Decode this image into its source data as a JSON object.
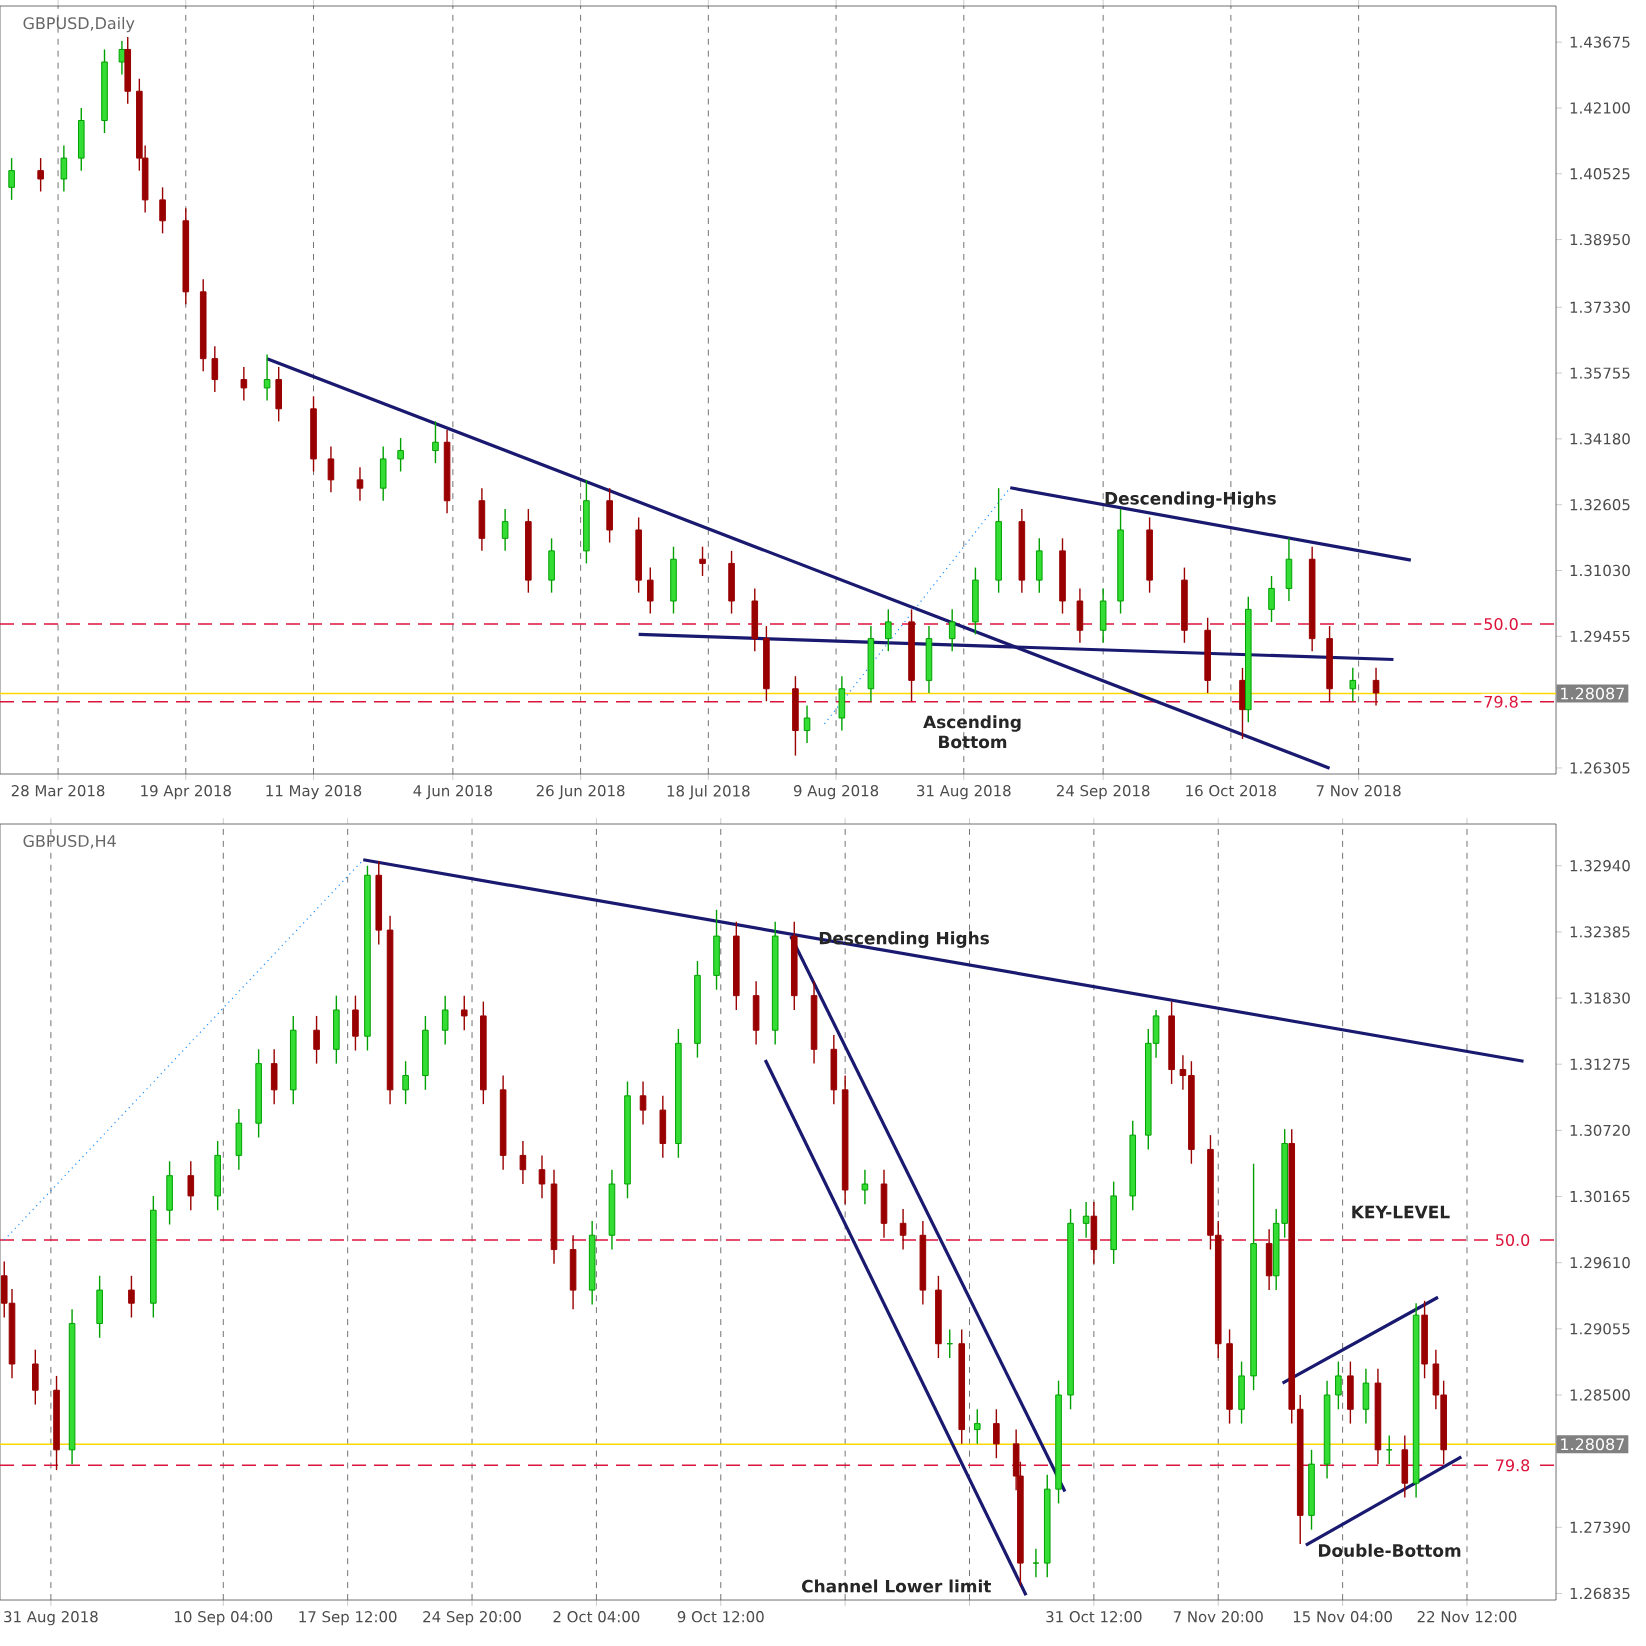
{
  "chart_data": [
    {
      "type": "candlestick",
      "title": "GBPUSD,Daily",
      "grid": "x",
      "x": [
        "2018-03-20",
        "2018-03-25",
        "2018-03-29",
        "2018-04-01",
        "2018-04-05",
        "2018-04-08",
        "2018-04-09",
        "2018-04-11",
        "2018-04-12",
        "2018-04-15",
        "2018-04-19",
        "2018-04-22",
        "2018-04-24",
        "2018-04-29",
        "2018-05-03",
        "2018-05-05",
        "2018-05-11",
        "2018-05-14",
        "2018-05-19",
        "2018-05-23",
        "2018-05-26",
        "2018-06-01",
        "2018-06-03",
        "2018-06-09",
        "2018-06-13",
        "2018-06-17",
        "2018-06-21",
        "2018-06-27",
        "2018-07-01",
        "2018-07-06",
        "2018-07-08",
        "2018-07-12",
        "2018-07-17",
        "2018-07-22",
        "2018-07-26",
        "2018-07-28",
        "2018-08-02",
        "2018-08-04",
        "2018-08-10",
        "2018-08-15",
        "2018-08-18",
        "2018-08-22",
        "2018-08-25",
        "2018-08-29",
        "2018-09-02",
        "2018-09-06",
        "2018-09-10",
        "2018-09-13",
        "2018-09-17",
        "2018-09-20",
        "2018-09-24",
        "2018-09-27",
        "2018-10-02",
        "2018-10-08",
        "2018-10-12",
        "2018-10-18",
        "2018-10-19",
        "2018-10-23",
        "2018-10-26",
        "2018-10-30",
        "2018-11-02",
        "2018-11-06",
        "2018-11-10"
      ],
      "ohlc": [
        [
          1.402,
          1.409,
          1.399,
          1.406
        ],
        [
          1.406,
          1.409,
          1.401,
          1.404
        ],
        [
          1.404,
          1.412,
          1.401,
          1.409
        ],
        [
          1.409,
          1.421,
          1.406,
          1.418
        ],
        [
          1.418,
          1.435,
          1.415,
          1.432
        ],
        [
          1.432,
          1.437,
          1.429,
          1.435
        ],
        [
          1.435,
          1.438,
          1.422,
          1.425
        ],
        [
          1.425,
          1.428,
          1.406,
          1.409
        ],
        [
          1.409,
          1.412,
          1.396,
          1.399
        ],
        [
          1.399,
          1.402,
          1.391,
          1.394
        ],
        [
          1.394,
          1.397,
          1.374,
          1.377
        ],
        [
          1.377,
          1.38,
          1.358,
          1.361
        ],
        [
          1.361,
          1.364,
          1.353,
          1.356
        ],
        [
          1.356,
          1.359,
          1.351,
          1.354
        ],
        [
          1.354,
          1.362,
          1.351,
          1.356
        ],
        [
          1.356,
          1.359,
          1.346,
          1.349
        ],
        [
          1.349,
          1.352,
          1.334,
          1.337
        ],
        [
          1.337,
          1.34,
          1.329,
          1.332
        ],
        [
          1.332,
          1.335,
          1.327,
          1.33
        ],
        [
          1.33,
          1.34,
          1.327,
          1.337
        ],
        [
          1.337,
          1.342,
          1.334,
          1.339
        ],
        [
          1.339,
          1.346,
          1.336,
          1.341
        ],
        [
          1.341,
          1.344,
          1.324,
          1.327
        ],
        [
          1.327,
          1.33,
          1.315,
          1.318
        ],
        [
          1.318,
          1.325,
          1.315,
          1.322
        ],
        [
          1.322,
          1.325,
          1.305,
          1.308
        ],
        [
          1.308,
          1.318,
          1.305,
          1.315
        ],
        [
          1.315,
          1.332,
          1.312,
          1.327
        ],
        [
          1.327,
          1.33,
          1.317,
          1.32
        ],
        [
          1.32,
          1.323,
          1.305,
          1.308
        ],
        [
          1.308,
          1.311,
          1.3,
          1.303
        ],
        [
          1.303,
          1.316,
          1.3,
          1.313
        ],
        [
          1.313,
          1.316,
          1.309,
          1.312
        ],
        [
          1.312,
          1.315,
          1.3,
          1.303
        ],
        [
          1.303,
          1.306,
          1.291,
          1.294
        ],
        [
          1.294,
          1.297,
          1.279,
          1.282
        ],
        [
          1.282,
          1.285,
          1.266,
          1.272
        ],
        [
          1.272,
          1.278,
          1.269,
          1.275
        ],
        [
          1.275,
          1.285,
          1.272,
          1.282
        ],
        [
          1.282,
          1.297,
          1.279,
          1.294
        ],
        [
          1.294,
          1.301,
          1.291,
          1.298
        ],
        [
          1.298,
          1.301,
          1.279,
          1.284
        ],
        [
          1.284,
          1.297,
          1.281,
          1.294
        ],
        [
          1.294,
          1.301,
          1.291,
          1.298
        ],
        [
          1.298,
          1.311,
          1.295,
          1.308
        ],
        [
          1.308,
          1.33,
          1.305,
          1.322
        ],
        [
          1.322,
          1.325,
          1.305,
          1.308
        ],
        [
          1.308,
          1.318,
          1.305,
          1.315
        ],
        [
          1.315,
          1.318,
          1.3,
          1.303
        ],
        [
          1.303,
          1.306,
          1.293,
          1.296
        ],
        [
          1.296,
          1.306,
          1.293,
          1.303
        ],
        [
          1.303,
          1.325,
          1.3,
          1.32
        ],
        [
          1.32,
          1.323,
          1.305,
          1.308
        ],
        [
          1.308,
          1.311,
          1.293,
          1.296
        ],
        [
          1.296,
          1.299,
          1.281,
          1.284
        ],
        [
          1.284,
          1.287,
          1.27,
          1.277
        ],
        [
          1.277,
          1.304,
          1.274,
          1.301
        ],
        [
          1.301,
          1.309,
          1.298,
          1.306
        ],
        [
          1.306,
          1.318,
          1.303,
          1.313
        ],
        [
          1.313,
          1.316,
          1.291,
          1.294
        ],
        [
          1.294,
          1.297,
          1.279,
          1.282
        ],
        [
          1.282,
          1.287,
          1.279,
          1.284
        ],
        [
          1.284,
          1.287,
          1.278,
          1.281
        ]
      ],
      "xlim": [
        "2018-03-18",
        "2018-12-11"
      ],
      "ylim": [
        1.2616,
        1.4454
      ],
      "xticks": [
        {
          "value": "2018-03-28",
          "label": "28 Mar 2018"
        },
        {
          "value": "2018-04-19",
          "label": "19 Apr 2018"
        },
        {
          "value": "2018-05-11",
          "label": "11 May 2018"
        },
        {
          "value": "2018-06-04",
          "label": "4 Jun 2018"
        },
        {
          "value": "2018-06-26",
          "label": "26 Jun 2018"
        },
        {
          "value": "2018-07-18",
          "label": "18 Jul 2018"
        },
        {
          "value": "2018-08-09",
          "label": "9 Aug 2018"
        },
        {
          "value": "2018-08-31",
          "label": "31 Aug 2018"
        },
        {
          "value": "2018-09-24",
          "label": "24 Sep 2018"
        },
        {
          "value": "2018-10-16",
          "label": "16 Oct 2018"
        },
        {
          "value": "2018-11-07",
          "label": "7 Nov 2018"
        }
      ],
      "yticks": [
        1.43675,
        {
          "value": 1.421,
          "label": "1.42100"
        },
        1.40525,
        {
          "value": 1.3895,
          "label": "1.38950"
        },
        {
          "value": 1.3733,
          "label": "1.37330"
        },
        1.35755,
        {
          "value": 1.3418,
          "label": "1.34180"
        },
        1.32605,
        {
          "value": 1.3103,
          "label": "1.31030"
        },
        1.29455,
        1.26305
      ],
      "series": [
        {
          "type": "line",
          "color": "#191970",
          "x": [
            "2018-05-03",
            "2018-11-02"
          ],
          "values": [
            1.361,
            1.263
          ]
        },
        {
          "type": "line",
          "color": "#191970",
          "x": [
            "2018-07-06",
            "2018-11-13"
          ],
          "values": [
            1.295,
            1.289
          ]
        },
        {
          "type": "line",
          "color": "#191970",
          "x": [
            "2018-09-08",
            "2018-11-16"
          ],
          "values": [
            1.3301,
            1.3128
          ]
        },
        {
          "type": "line",
          "color": "#1e90ff",
          "line_style": "dotted",
          "x": [
            "2018-08-07",
            "2018-09-08"
          ],
          "values": [
            1.2736,
            1.3301
          ]
        }
      ],
      "ref_lines": [
        {
          "axis": "y",
          "value": 1.2975,
          "color": "#dc143c",
          "line_style": "dashed"
        },
        {
          "axis": "y",
          "value": 1.2789,
          "color": "#dc143c",
          "line_style": "dashed"
        },
        {
          "axis": "y",
          "value": 1.28087,
          "label": "1.28087",
          "color": "#ffd700",
          "line_style": "solid"
        }
      ],
      "annotations": [
        "Descending-Highs",
        "Ascending Bottom",
        {
          "text": "50.0",
          "x": "2018-12-05",
          "y": 1.2975
        },
        {
          "text": "79.8",
          "x": "2018-12-05",
          "y": 1.2789
        }
      ]
    },
    {
      "type": "candlestick",
      "title": "GBPUSD,H4",
      "grid": "x",
      "x": [
        "2018-08-28T06:00",
        "2018-08-28T17:00",
        "2018-08-30T02:00",
        "2018-08-31T08:00",
        "2018-09-01T06:00",
        "2018-09-02T21:00",
        "2018-09-04T18:00",
        "2018-09-06T01:00",
        "2018-09-07T00:00",
        "2018-09-08T06:00",
        "2018-09-09T20:00",
        "2018-09-11T02:00",
        "2018-09-12T06:00",
        "2018-09-13T04:00",
        "2018-09-14T07:00",
        "2018-09-15T16:00",
        "2018-09-16T20:00",
        "2018-09-17T23:00",
        "2018-09-18T16:00",
        "2018-09-19T08:00",
        "2018-09-20T00:00",
        "2018-09-20T22:00",
        "2018-09-22T02:00",
        "2018-09-23T06:00",
        "2018-09-24T09:00",
        "2018-09-25T12:00",
        "2018-09-26T16:00",
        "2018-09-27T20:00",
        "2018-09-28T23:00",
        "2018-09-29T16:00",
        "2018-09-30T19:00",
        "2018-10-01T22:00",
        "2018-10-03T02:00",
        "2018-10-04T00:00",
        "2018-10-04T22:00",
        "2018-10-06T02:00",
        "2018-10-07T00:00",
        "2018-10-08T03:00",
        "2018-10-09T06:00",
        "2018-10-10T10:00",
        "2018-10-11T14:00",
        "2018-10-12T17:00",
        "2018-10-13T20:00",
        "2018-10-15T00:00",
        "2018-10-16T04:00",
        "2018-10-16T20:00",
        "2018-10-18T00:00",
        "2018-10-19T03:00",
        "2018-10-20T06:00",
        "2018-10-21T10:00",
        "2018-10-22T08:00",
        "2018-10-23T00:00",
        "2018-10-23T17:00",
        "2018-10-24T15:00",
        "2018-10-25T18:00",
        "2018-10-26T22:00",
        "2018-10-27T04:00",
        "2018-10-28T02:00",
        "2018-10-28T18:00",
        "2018-10-29T10:00",
        "2018-10-30T03:00",
        "2018-10-31T01:00",
        "2018-10-31T12:00",
        "2018-11-01T16:00",
        "2018-11-02T19:00",
        "2018-11-03T17:00",
        "2018-11-04T04:00",
        "2018-11-05T02:00",
        "2018-11-05T18:00",
        "2018-11-06T06:00",
        "2018-11-07T09:00",
        "2018-11-07T20:00",
        "2018-11-08T12:00",
        "2018-11-09T05:00",
        "2018-11-09T22:00",
        "2018-11-10T20:00",
        "2018-11-11T06:00",
        "2018-11-11T18:00",
        "2018-11-12T04:00",
        "2018-11-12T16:00",
        "2018-11-13T08:00",
        "2018-11-14T06:00",
        "2018-11-14T22:00",
        "2018-11-15T15:00",
        "2018-11-16T13:00",
        "2018-11-17T06:00",
        "2018-11-17T22:00",
        "2018-11-18T20:00",
        "2018-11-19T12:00",
        "2018-11-20T00:00",
        "2018-11-20T16:00",
        "2018-11-21T03:00"
      ],
      "ohlc": [
        [
          1.295,
          1.2962,
          1.2915,
          1.2927
        ],
        [
          1.2927,
          1.2939,
          1.2864,
          1.2876
        ],
        [
          1.2876,
          1.2888,
          1.2842,
          1.2854
        ],
        [
          1.2854,
          1.2866,
          1.2787,
          1.2804
        ],
        [
          1.2804,
          1.2922,
          1.2792,
          1.291
        ],
        [
          1.291,
          1.295,
          1.2898,
          1.2938
        ],
        [
          1.2938,
          1.295,
          1.2915,
          1.2927
        ],
        [
          1.2927,
          1.3017,
          1.2915,
          1.3005
        ],
        [
          1.3005,
          1.3046,
          1.2993,
          1.3034
        ],
        [
          1.3034,
          1.3046,
          1.3005,
          1.3017
        ],
        [
          1.3017,
          1.3063,
          1.3005,
          1.3051
        ],
        [
          1.3051,
          1.309,
          1.3039,
          1.3078
        ],
        [
          1.3078,
          1.314,
          1.3066,
          1.3128
        ],
        [
          1.3128,
          1.314,
          1.3094,
          1.3106
        ],
        [
          1.3106,
          1.3168,
          1.3094,
          1.3156
        ],
        [
          1.3156,
          1.3168,
          1.3128,
          1.314
        ],
        [
          1.314,
          1.3185,
          1.3128,
          1.3173
        ],
        [
          1.3173,
          1.3185,
          1.3139,
          1.3151
        ],
        [
          1.3151,
          1.3294,
          1.3139,
          1.3286
        ],
        [
          1.3286,
          1.3298,
          1.3228,
          1.324
        ],
        [
          1.324,
          1.3252,
          1.3094,
          1.3106
        ],
        [
          1.3106,
          1.313,
          1.3094,
          1.3118
        ],
        [
          1.3118,
          1.3168,
          1.3106,
          1.3156
        ],
        [
          1.3156,
          1.3185,
          1.3144,
          1.3173
        ],
        [
          1.3173,
          1.3185,
          1.3156,
          1.3168
        ],
        [
          1.3168,
          1.318,
          1.3094,
          1.3106
        ],
        [
          1.3106,
          1.3118,
          1.3039,
          1.3051
        ],
        [
          1.3051,
          1.3063,
          1.3027,
          1.3039
        ],
        [
          1.3039,
          1.3051,
          1.3015,
          1.3027
        ],
        [
          1.3027,
          1.3039,
          1.296,
          1.2972
        ],
        [
          1.2972,
          1.2984,
          1.2922,
          1.2938
        ],
        [
          1.2938,
          1.2996,
          1.2926,
          1.2984
        ],
        [
          1.2984,
          1.3039,
          1.2972,
          1.3027
        ],
        [
          1.3027,
          1.3113,
          1.3015,
          1.3101
        ],
        [
          1.3101,
          1.3113,
          1.3077,
          1.3089
        ],
        [
          1.3089,
          1.3101,
          1.3049,
          1.3061
        ],
        [
          1.3061,
          1.3157,
          1.3049,
          1.3145
        ],
        [
          1.3145,
          1.3214,
          1.3133,
          1.3202
        ],
        [
          1.3202,
          1.3257,
          1.319,
          1.3235
        ],
        [
          1.3235,
          1.3247,
          1.3173,
          1.3185
        ],
        [
          1.3185,
          1.3197,
          1.3144,
          1.3156
        ],
        [
          1.3156,
          1.3247,
          1.3144,
          1.3235
        ],
        [
          1.3235,
          1.3247,
          1.3173,
          1.3185
        ],
        [
          1.3185,
          1.3197,
          1.3128,
          1.314
        ],
        [
          1.314,
          1.3152,
          1.3094,
          1.3106
        ],
        [
          1.3106,
          1.3118,
          1.301,
          1.3022
        ],
        [
          1.3022,
          1.3039,
          1.301,
          1.3027
        ],
        [
          1.3027,
          1.3039,
          1.2982,
          1.2994
        ],
        [
          1.2994,
          1.3006,
          1.2972,
          1.2984
        ],
        [
          1.2984,
          1.2996,
          1.2926,
          1.2938
        ],
        [
          1.2938,
          1.295,
          1.2881,
          1.2893
        ],
        [
          1.2893,
          1.2905,
          1.2881,
          1.2893
        ],
        [
          1.2893,
          1.2905,
          1.2809,
          1.2821
        ],
        [
          1.2821,
          1.2838,
          1.2809,
          1.2826
        ],
        [
          1.2826,
          1.2838,
          1.2797,
          1.2809
        ],
        [
          1.2809,
          1.2821,
          1.277,
          1.2782
        ],
        [
          1.2782,
          1.2794,
          1.269,
          1.2709
        ],
        [
          1.2709,
          1.2721,
          1.2697,
          1.2709
        ],
        [
          1.2709,
          1.2783,
          1.2697,
          1.2771
        ],
        [
          1.2771,
          1.2862,
          1.2759,
          1.285
        ],
        [
          1.285,
          1.3006,
          1.2838,
          1.2994
        ],
        [
          1.2994,
          1.3012,
          1.2982,
          1.3
        ],
        [
          1.3,
          1.3012,
          1.296,
          1.2972
        ],
        [
          1.2972,
          1.3029,
          1.296,
          1.3017
        ],
        [
          1.3017,
          1.308,
          1.3005,
          1.3068
        ],
        [
          1.3068,
          1.3157,
          1.3056,
          1.3145
        ],
        [
          1.3145,
          1.3173,
          1.3133,
          1.3168
        ],
        [
          1.3168,
          1.318,
          1.3111,
          1.3123
        ],
        [
          1.3123,
          1.3135,
          1.3106,
          1.3118
        ],
        [
          1.3118,
          1.313,
          1.3044,
          1.3056
        ],
        [
          1.3056,
          1.3068,
          1.2972,
          1.2984
        ],
        [
          1.2984,
          1.2996,
          1.2881,
          1.2893
        ],
        [
          1.2893,
          1.2905,
          1.2826,
          1.2838
        ],
        [
          1.2838,
          1.2878,
          1.2826,
          1.2866
        ],
        [
          1.2866,
          1.3044,
          1.2854,
          1.2977
        ],
        [
          1.2977,
          1.2989,
          1.2938,
          1.295
        ],
        [
          1.295,
          1.3006,
          1.2938,
          1.2994
        ],
        [
          1.2994,
          1.3073,
          1.2982,
          1.3061
        ],
        [
          1.3061,
          1.3073,
          1.2826,
          1.2838
        ],
        [
          1.2838,
          1.285,
          1.2725,
          1.2749
        ],
        [
          1.2749,
          1.2804,
          1.2737,
          1.2792
        ],
        [
          1.2792,
          1.2862,
          1.278,
          1.285
        ],
        [
          1.285,
          1.2878,
          1.2838,
          1.2866
        ],
        [
          1.2866,
          1.2878,
          1.2826,
          1.2838
        ],
        [
          1.2838,
          1.2872,
          1.2826,
          1.286
        ],
        [
          1.286,
          1.2872,
          1.2792,
          1.2804
        ],
        [
          1.2804,
          1.2816,
          1.2792,
          1.2804
        ],
        [
          1.2804,
          1.2816,
          1.2764,
          1.2776
        ],
        [
          1.2776,
          1.2927,
          1.2764,
          1.2917
        ],
        [
          1.2917,
          1.2929,
          1.2864,
          1.2876
        ],
        [
          1.2876,
          1.2888,
          1.2838,
          1.285
        ],
        [
          1.285,
          1.2862,
          1.2792,
          1.2804
        ]
      ],
      "xlim": [
        "2018-08-28T00:00",
        "2018-11-27T18:00"
      ],
      "ylim": [
        1.2678,
        1.3329
      ],
      "xticks": [
        {
          "value": "2018-08-31T00:00",
          "label": "31 Aug 2018"
        },
        {
          "value": "2018-09-10T04:00",
          "label": "10 Sep 04:00"
        },
        {
          "value": "2018-09-17T12:00",
          "label": "17 Sep 12:00"
        },
        {
          "value": "2018-09-24T20:00",
          "label": "24 Sep 20:00"
        },
        {
          "value": "2018-10-02T04:00",
          "label": "2 Oct 04:00"
        },
        {
          "value": "2018-10-09T12:00",
          "label": "9 Oct 12:00"
        },
        {
          "value": "2018-10-16T20:00",
          "label": null
        },
        {
          "value": "2018-10-24T04:00",
          "label": null
        },
        {
          "value": "2018-10-31T12:00",
          "label": "31 Oct 12:00"
        },
        {
          "value": "2018-11-07T20:00",
          "label": "7 Nov 20:00"
        },
        {
          "value": "2018-11-15T04:00",
          "label": "15 Nov 04:00"
        },
        {
          "value": "2018-11-22T12:00",
          "label": "22 Nov 12:00"
        }
      ],
      "yticks": [
        {
          "value": 1.3294,
          "label": "1.32940"
        },
        1.32385,
        {
          "value": 1.3183,
          "label": "1.31830"
        },
        1.31275,
        {
          "value": 1.3072,
          "label": "1.30720"
        },
        1.30165,
        {
          "value": 1.2961,
          "label": "1.29610"
        },
        1.29055,
        {
          "value": 1.285,
          "label": "1.28500"
        },
        {
          "value": 1.2739,
          "label": "1.27390"
        },
        1.26835
      ],
      "series": [
        {
          "type": "line",
          "color": "#191970",
          "x": [
            "2018-09-18T10:00",
            "2018-11-25T20:00"
          ],
          "values": [
            1.3299,
            1.313
          ]
        },
        {
          "type": "line",
          "color": "#191970",
          "x": [
            "2018-10-13T15:00",
            "2018-10-29T19:00"
          ],
          "values": [
            1.3235,
            1.2769
          ]
        },
        {
          "type": "line",
          "color": "#191970",
          "x": [
            "2018-10-12T03:00",
            "2018-10-27T12:00"
          ],
          "values": [
            1.3131,
            1.2682
          ]
        },
        {
          "type": "line",
          "color": "#191970",
          "x": [
            "2018-11-11T15:00",
            "2018-11-20T19:00"
          ],
          "values": [
            1.286,
            1.2932
          ]
        },
        {
          "type": "line",
          "color": "#191970",
          "x": [
            "2018-11-13T00:00",
            "2018-11-22T04:00"
          ],
          "values": [
            1.2724,
            1.2798
          ]
        },
        {
          "type": "line",
          "color": "#1e90ff",
          "line_style": "dotted",
          "x": [
            "2018-08-28T06:00",
            "2018-09-18T10:00"
          ],
          "values": [
            1.298,
            1.3299
          ]
        }
      ],
      "ref_lines": [
        {
          "axis": "y",
          "value": 1.298,
          "color": "#dc143c",
          "line_style": "dashed"
        },
        {
          "axis": "y",
          "value": 1.2791,
          "color": "#dc143c",
          "line_style": "dashed"
        },
        {
          "axis": "y",
          "value": 1.28087,
          "label": "1.28087",
          "color": "#ffd700",
          "line_style": "solid"
        }
      ],
      "annotations": [
        "Descending Highs",
        "KEY-LEVEL",
        "Double-Bottom",
        "Channel Lower limit",
        {
          "text": "50.0",
          "x": "2018-11-26T09:00",
          "y": 1.298
        },
        {
          "text": "79.8",
          "x": "2018-11-26T09:00",
          "y": 1.2791
        }
      ]
    }
  ]
}
